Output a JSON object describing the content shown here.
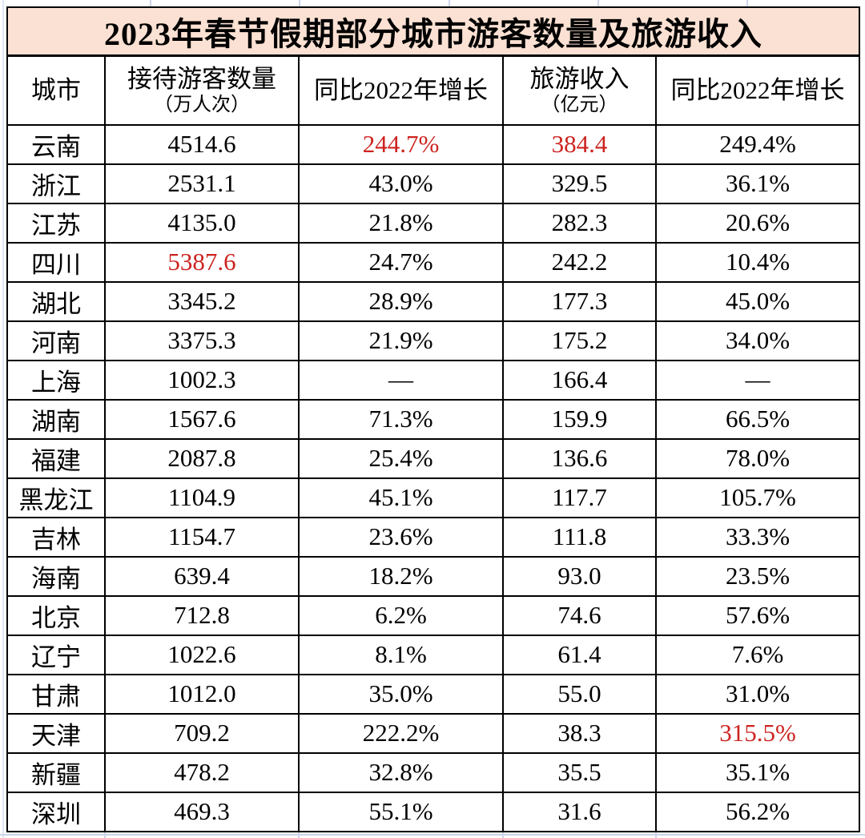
{
  "chart_data": {
    "type": "table",
    "title": "2023年春节假期部分城市游客数量及旅游收入",
    "columns": [
      {
        "label": "城市",
        "sub": ""
      },
      {
        "label": "接待游客数量",
        "sub": "（万人次）"
      },
      {
        "label": "同比2022年增长",
        "sub": ""
      },
      {
        "label": "旅游收入",
        "sub": "（亿元）"
      },
      {
        "label": "同比2022年增长",
        "sub": ""
      }
    ],
    "rows": [
      {
        "cells": [
          "云南",
          "4514.6",
          "244.7%",
          "384.4",
          "249.4%"
        ],
        "red": [
          2,
          3
        ]
      },
      {
        "cells": [
          "浙江",
          "2531.1",
          "43.0%",
          "329.5",
          "36.1%"
        ],
        "red": []
      },
      {
        "cells": [
          "江苏",
          "4135.0",
          "21.8%",
          "282.3",
          "20.6%"
        ],
        "red": []
      },
      {
        "cells": [
          "四川",
          "5387.6",
          "24.7%",
          "242.2",
          "10.4%"
        ],
        "red": [
          1
        ]
      },
      {
        "cells": [
          "湖北",
          "3345.2",
          "28.9%",
          "177.3",
          "45.0%"
        ],
        "red": []
      },
      {
        "cells": [
          "河南",
          "3375.3",
          "21.9%",
          "175.2",
          "34.0%"
        ],
        "red": []
      },
      {
        "cells": [
          "上海",
          "1002.3",
          "—",
          "166.4",
          "—"
        ],
        "red": []
      },
      {
        "cells": [
          "湖南",
          "1567.6",
          "71.3%",
          "159.9",
          "66.5%"
        ],
        "red": []
      },
      {
        "cells": [
          "福建",
          "2087.8",
          "25.4%",
          "136.6",
          "78.0%"
        ],
        "red": []
      },
      {
        "cells": [
          "黑龙江",
          "1104.9",
          "45.1%",
          "117.7",
          "105.7%"
        ],
        "red": []
      },
      {
        "cells": [
          "吉林",
          "1154.7",
          "23.6%",
          "111.8",
          "33.3%"
        ],
        "red": []
      },
      {
        "cells": [
          "海南",
          "639.4",
          "18.2%",
          "93.0",
          "23.5%"
        ],
        "red": []
      },
      {
        "cells": [
          "北京",
          "712.8",
          "6.2%",
          "74.6",
          "57.6%"
        ],
        "red": []
      },
      {
        "cells": [
          "辽宁",
          "1022.6",
          "8.1%",
          "61.4",
          "7.6%"
        ],
        "red": []
      },
      {
        "cells": [
          "甘肃",
          "1012.0",
          "35.0%",
          "55.0",
          "31.0%"
        ],
        "red": []
      },
      {
        "cells": [
          "天津",
          "709.2",
          "222.2%",
          "38.3",
          "315.5%"
        ],
        "red": [
          4
        ]
      },
      {
        "cells": [
          "新疆",
          "478.2",
          "32.8%",
          "35.5",
          "35.1%"
        ],
        "red": []
      },
      {
        "cells": [
          "深圳",
          "469.3",
          "55.1%",
          "31.6",
          "56.2%"
        ],
        "red": []
      }
    ],
    "colors": {
      "title_bg": "#fbe1d3",
      "highlight_red": "#cc2420",
      "border": "#000000"
    }
  }
}
